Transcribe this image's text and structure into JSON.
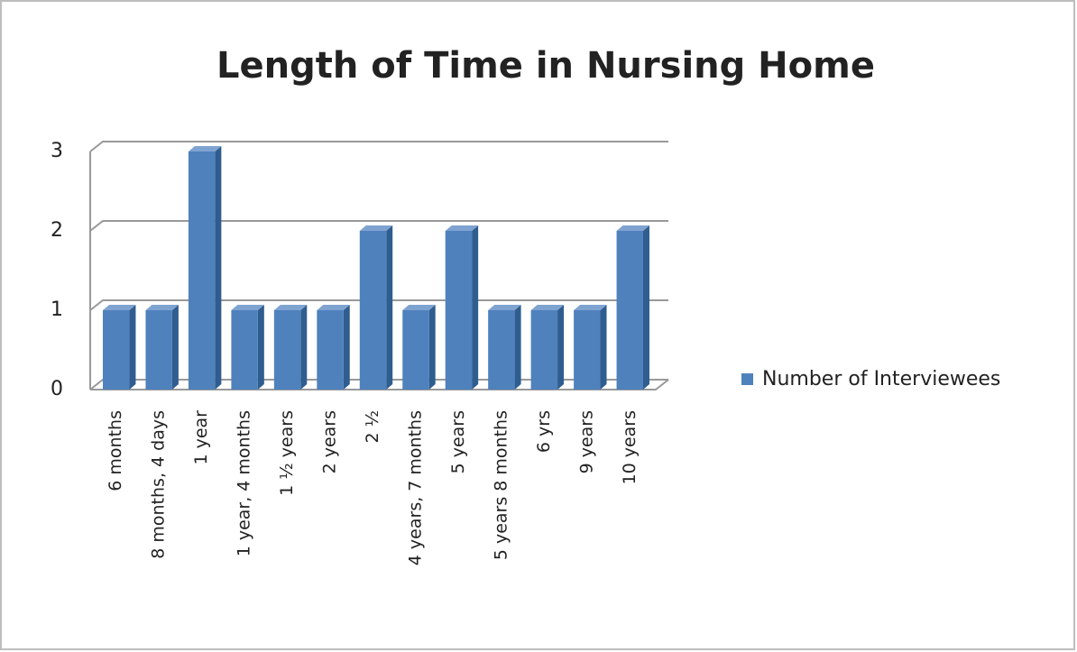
{
  "chart_data": {
    "type": "bar",
    "title": "Length of Time in Nursing Home",
    "categories": [
      "6 months",
      "8 months, 4 days",
      "1 year",
      "1 year, 4 months",
      "1 ½ years",
      "2 years",
      "2 ½",
      "4 years, 7 months",
      "5 years",
      "5 years 8 months",
      "6 yrs",
      "9 years",
      "10 years"
    ],
    "series": [
      {
        "name": "Number of Interviewees",
        "color": "#4f81bd",
        "values": [
          1,
          1,
          3,
          1,
          1,
          1,
          2,
          1,
          2,
          1,
          1,
          1,
          2
        ]
      }
    ],
    "ylim": [
      0,
      3
    ],
    "yticks": [
      0,
      1,
      2,
      3
    ],
    "grid": true,
    "legend": "right"
  }
}
